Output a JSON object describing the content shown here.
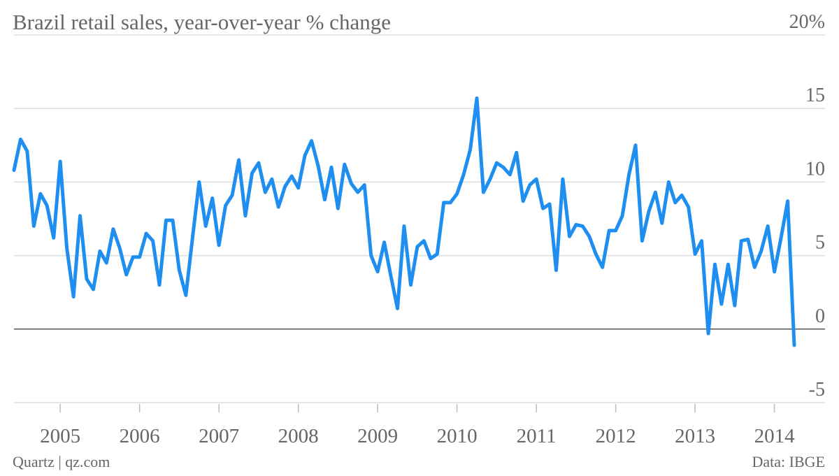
{
  "chart_data": {
    "type": "line",
    "title": "Brazil retail sales, year-over-year % change",
    "source_left": "Quartz | qz.com",
    "source_right": "Data: IBGE",
    "x": [
      2004.417,
      2004.5,
      2004.583,
      2004.667,
      2004.75,
      2004.833,
      2004.917,
      2005.0,
      2005.083,
      2005.167,
      2005.25,
      2005.333,
      2005.417,
      2005.5,
      2005.583,
      2005.667,
      2005.75,
      2005.833,
      2005.917,
      2006.0,
      2006.083,
      2006.167,
      2006.25,
      2006.333,
      2006.417,
      2006.5,
      2006.583,
      2006.667,
      2006.75,
      2006.833,
      2006.917,
      2007.0,
      2007.083,
      2007.167,
      2007.25,
      2007.333,
      2007.417,
      2007.5,
      2007.583,
      2007.667,
      2007.75,
      2007.833,
      2007.917,
      2008.0,
      2008.083,
      2008.167,
      2008.25,
      2008.333,
      2008.417,
      2008.5,
      2008.583,
      2008.667,
      2008.75,
      2008.833,
      2008.917,
      2009.0,
      2009.083,
      2009.167,
      2009.25,
      2009.333,
      2009.417,
      2009.5,
      2009.583,
      2009.667,
      2009.75,
      2009.833,
      2009.917,
      2010.0,
      2010.083,
      2010.167,
      2010.25,
      2010.333,
      2010.417,
      2010.5,
      2010.583,
      2010.667,
      2010.75,
      2010.833,
      2010.917,
      2011.0,
      2011.083,
      2011.167,
      2011.25,
      2011.333,
      2011.417,
      2011.5,
      2011.583,
      2011.667,
      2011.75,
      2011.833,
      2011.917,
      2012.0,
      2012.083,
      2012.167,
      2012.25,
      2012.333,
      2012.417,
      2012.5,
      2012.583,
      2012.667,
      2012.75,
      2012.833,
      2012.917,
      2013.0,
      2013.083,
      2013.167,
      2013.25,
      2013.333,
      2013.417,
      2013.5,
      2013.583,
      2013.667,
      2013.75,
      2013.833,
      2013.917,
      2014.0,
      2014.083,
      2014.167,
      2014.25
    ],
    "series": [
      {
        "name": "Retail sales",
        "color": "#1e8ff0",
        "values": [
          10.8,
          12.9,
          12.1,
          7.0,
          9.2,
          8.4,
          6.2,
          11.4,
          5.5,
          2.2,
          7.7,
          3.4,
          2.7,
          5.3,
          4.5,
          6.8,
          5.5,
          3.7,
          4.9,
          4.9,
          6.5,
          6.0,
          3.0,
          7.4,
          7.4,
          4.0,
          2.3,
          6.2,
          10.0,
          7.0,
          8.9,
          5.7,
          8.4,
          9.1,
          11.5,
          7.7,
          10.6,
          11.3,
          9.3,
          10.2,
          8.3,
          9.7,
          10.4,
          9.6,
          11.8,
          12.8,
          11.1,
          8.8,
          11.0,
          8.2,
          11.2,
          9.9,
          9.3,
          9.8,
          5.0,
          3.9,
          5.9,
          3.6,
          1.4,
          7.0,
          3.0,
          5.6,
          6.0,
          4.8,
          5.1,
          8.6,
          8.6,
          9.2,
          10.5,
          12.2,
          15.7,
          9.3,
          10.2,
          11.3,
          11.0,
          10.5,
          12.0,
          8.7,
          9.8,
          10.2,
          8.2,
          8.5,
          4.0,
          10.2,
          6.3,
          7.1,
          7.0,
          6.3,
          5.1,
          4.2,
          6.7,
          6.7,
          7.7,
          10.5,
          12.5,
          6.0,
          8.0,
          9.3,
          7.2,
          10.0,
          8.6,
          9.1,
          8.3,
          5.1,
          6.0,
          -0.3,
          4.4,
          1.7,
          4.4,
          1.6,
          6.0,
          6.1,
          4.2,
          5.3,
          7.0,
          3.9,
          6.2,
          8.7,
          -1.1
        ]
      }
    ],
    "xlim": [
      2004.417,
      2014.25
    ],
    "xticks": [
      2005,
      2006,
      2007,
      2008,
      2009,
      2010,
      2011,
      2012,
      2013,
      2014
    ],
    "ylim": [
      -5,
      20
    ],
    "yticks": [
      -5,
      0,
      5,
      10,
      15,
      {
        "value": 20,
        "label": "20%"
      }
    ],
    "grid": true
  }
}
